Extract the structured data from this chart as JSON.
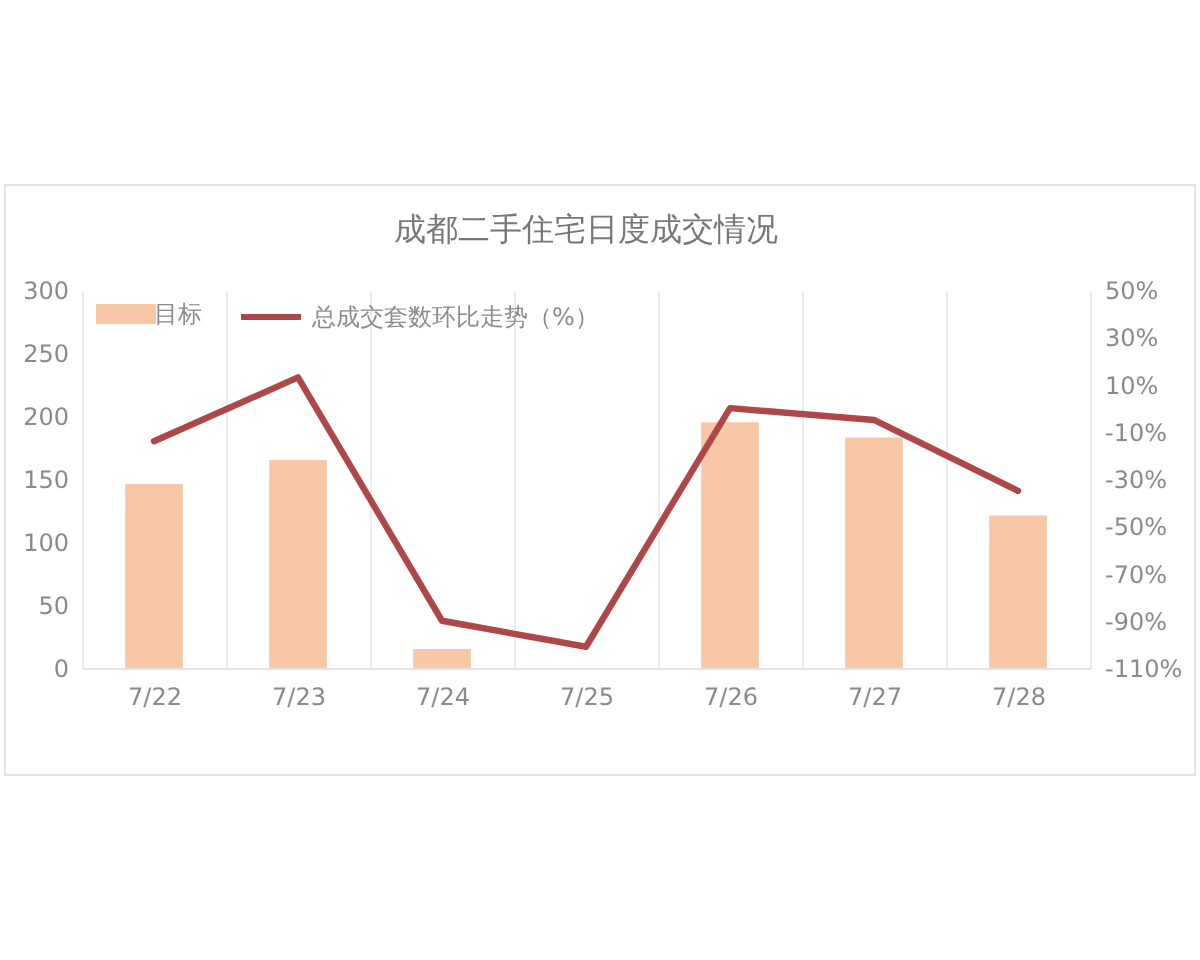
{
  "chart_data": {
    "type": "bar",
    "title": "成都二手住宅日度成交情况",
    "categories": [
      "7/22",
      "7/23",
      "7/24",
      "7/25",
      "7/26",
      "7/27",
      "7/28"
    ],
    "series": [
      {
        "name": "目标",
        "color": "#f7c7a6",
        "values": [
          146,
          165,
          15,
          null,
          195,
          183,
          121
        ]
      },
      {
        "name": "总成交套数环比走势（%）",
        "type": "line",
        "axis": "y2",
        "color": "#ae4848",
        "values": [
          -14,
          13,
          -90,
          -101,
          0,
          -5,
          -35
        ]
      }
    ],
    "ylim": [
      0,
      300
    ],
    "yticks": [
      0,
      50,
      100,
      150,
      200,
      250,
      300
    ],
    "y2lim": [
      -110,
      50
    ],
    "y2ticks": [
      {
        "value": -110,
        "label": "-110%"
      },
      {
        "value": -90,
        "label": "-90%"
      },
      {
        "value": -70,
        "label": "-70%"
      },
      {
        "value": -50,
        "label": "-50%"
      },
      {
        "value": -30,
        "label": "-30%"
      },
      {
        "value": -10,
        "label": "-10%"
      },
      {
        "value": 10,
        "label": "10%"
      },
      {
        "value": 30,
        "label": "30%"
      },
      {
        "value": 50,
        "label": "50%"
      }
    ],
    "grid": "x",
    "legend": "top left",
    "line_style": "solid"
  }
}
